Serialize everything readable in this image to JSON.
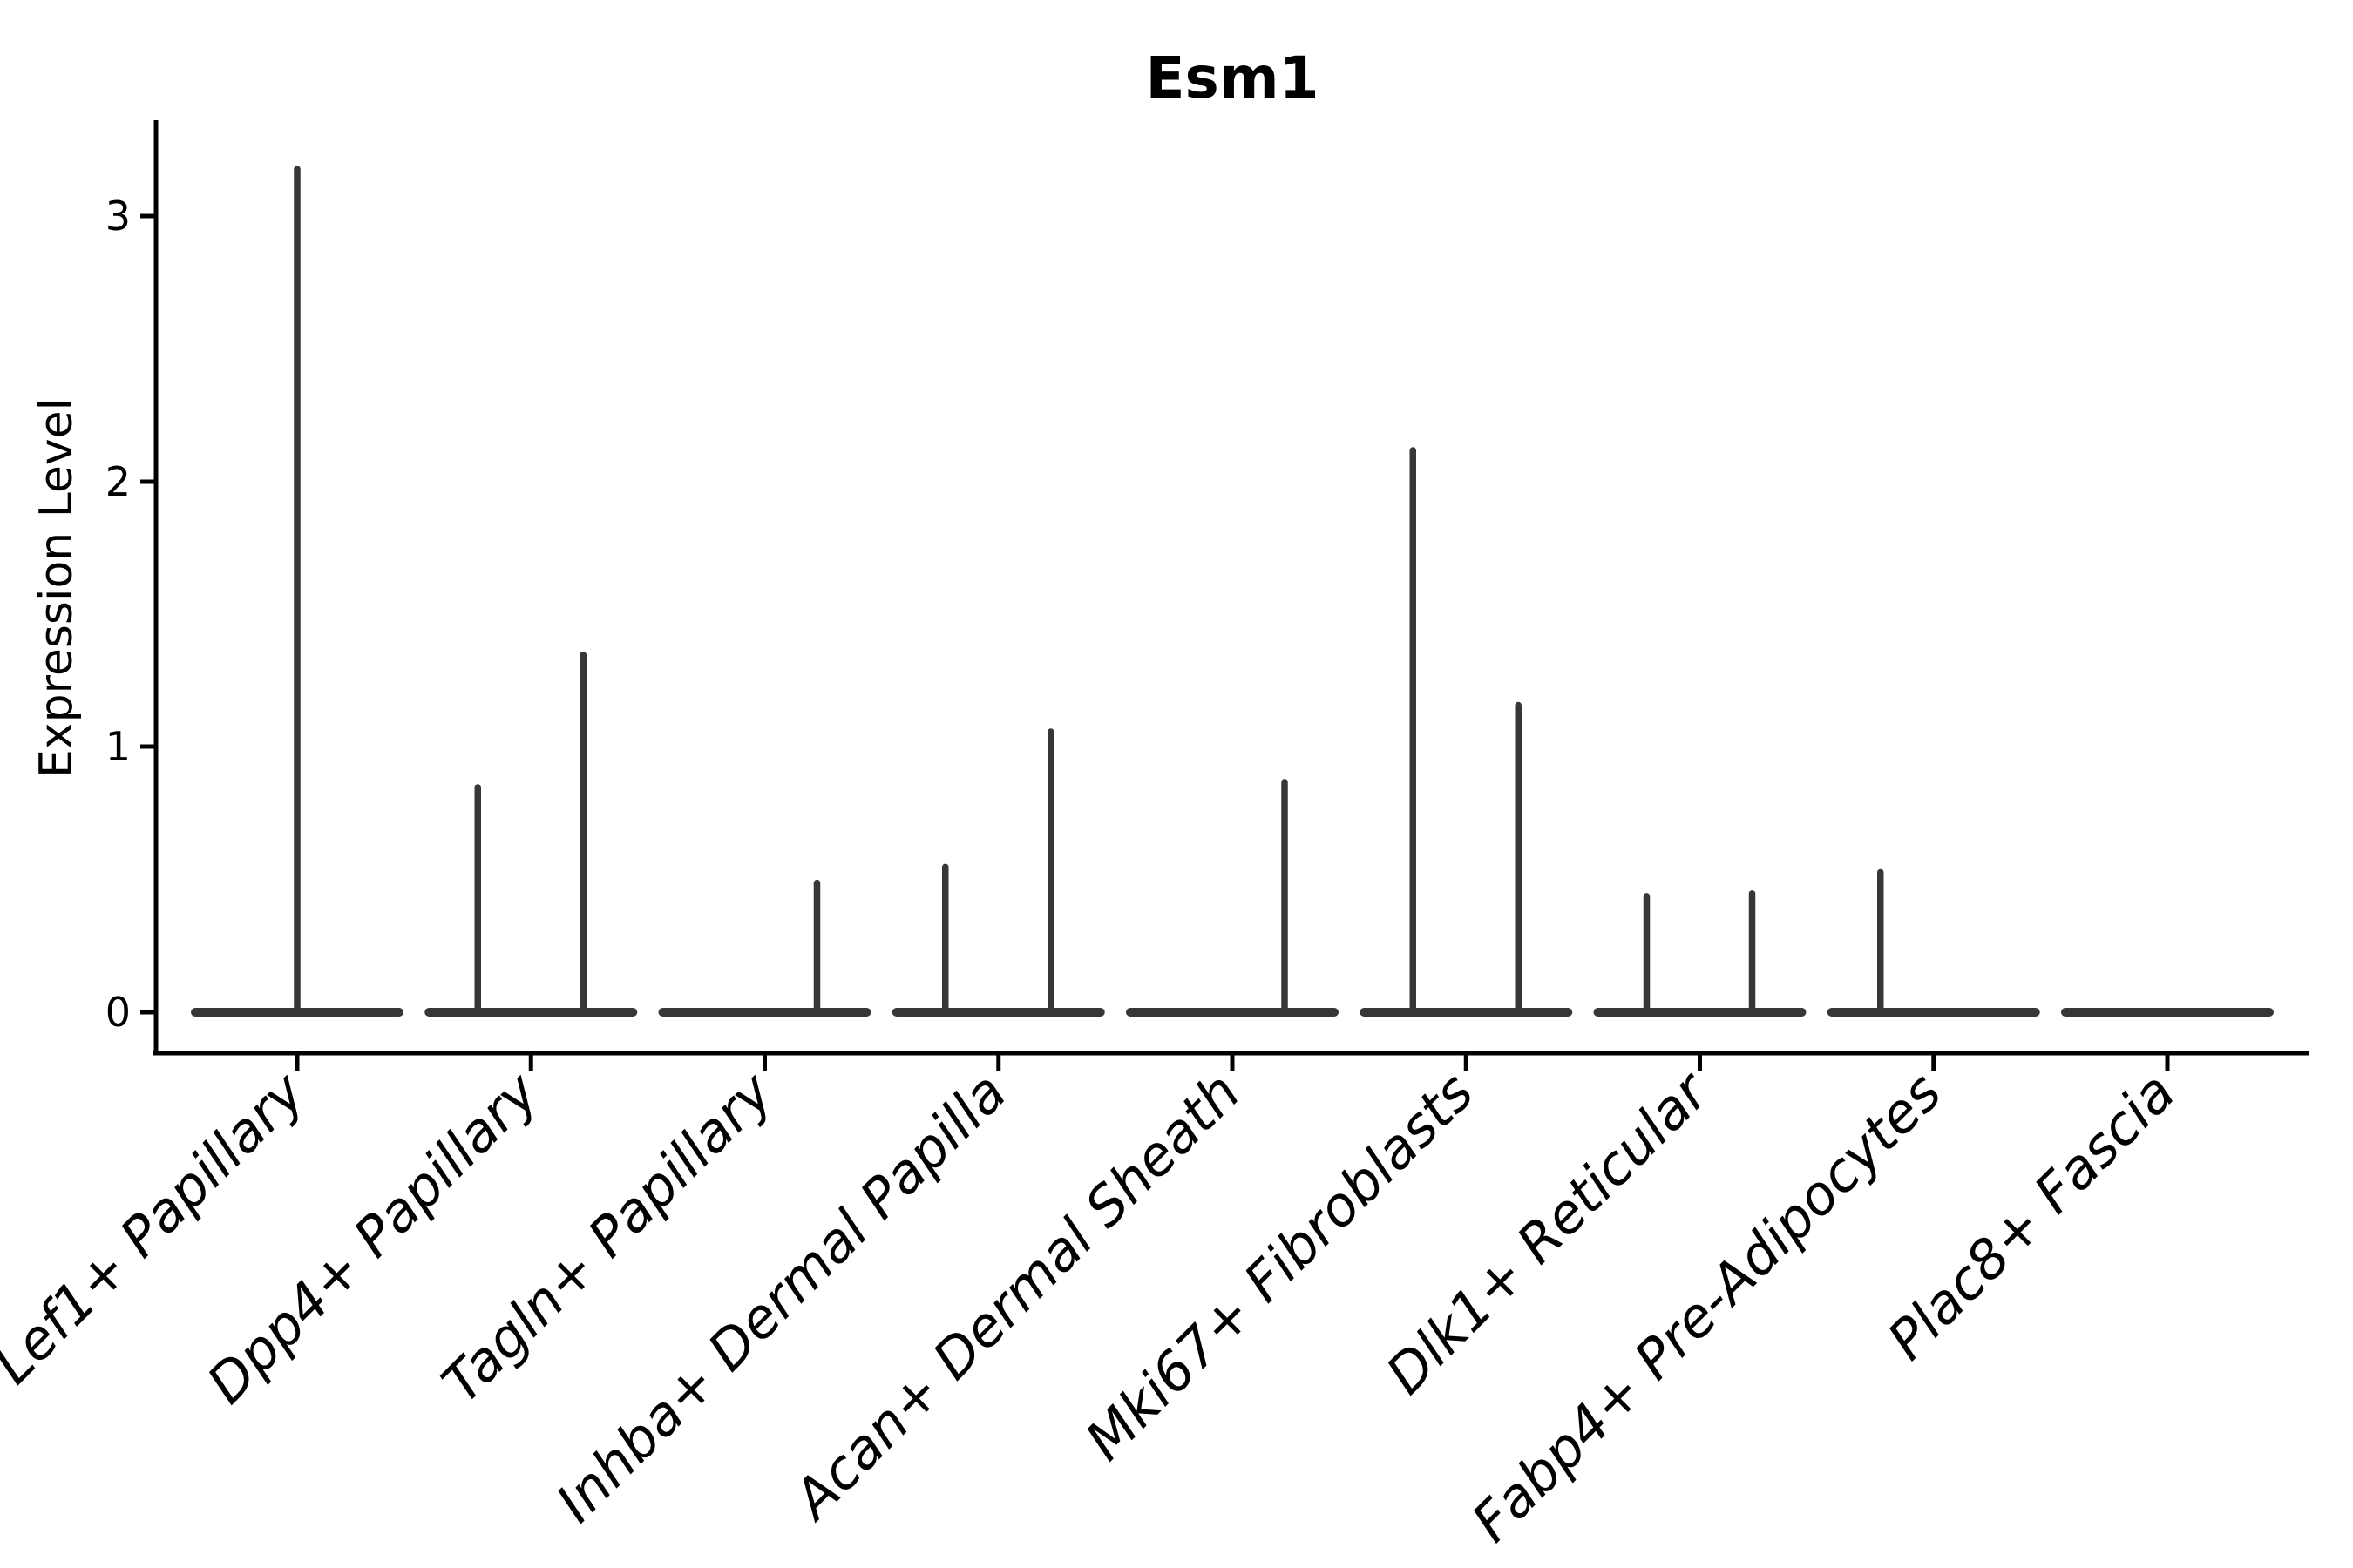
{
  "chart_data": {
    "type": "violin",
    "title": "Esm1",
    "xlabel": "",
    "ylabel": "Expression Level",
    "yticks": [
      "0",
      "1",
      "2",
      "3"
    ],
    "ylim": [
      -0.15,
      3.35
    ],
    "grid": false,
    "legend": null,
    "categories": [
      "Lef1+ Papillary",
      "Dpp4+ Papillary",
      "Tagln+ Papillary",
      "Inhba+ Dermal Papilla",
      "Acan+ Dermal Sheath",
      "Mki67+ Fibroblasts",
      "Dlk1+ Reticular",
      "Fabp4+ Pre-Adipocytes",
      "Plac8+ Fascia"
    ],
    "violins": [
      {
        "category": "Lef1+ Papillary",
        "baseline_at": 0,
        "spikes": [
          {
            "position": "center",
            "max": 3.19
          }
        ]
      },
      {
        "category": "Dpp4+ Papillary",
        "baseline_at": 0,
        "spikes": [
          {
            "position": "left",
            "max": 0.86
          },
          {
            "position": "right",
            "max": 1.36
          }
        ]
      },
      {
        "category": "Tagln+ Papillary",
        "baseline_at": 0,
        "spikes": [
          {
            "position": "right",
            "max": 0.5
          }
        ]
      },
      {
        "category": "Inhba+ Dermal Papilla",
        "baseline_at": 0,
        "spikes": [
          {
            "position": "left",
            "max": 0.56
          },
          {
            "position": "right",
            "max": 1.07
          }
        ]
      },
      {
        "category": "Acan+ Dermal Sheath",
        "baseline_at": 0,
        "spikes": [
          {
            "position": "right",
            "max": 0.88
          }
        ]
      },
      {
        "category": "Mki67+ Fibroblasts",
        "baseline_at": 0,
        "spikes": [
          {
            "position": "left",
            "max": 2.13
          },
          {
            "position": "right",
            "max": 1.17
          }
        ]
      },
      {
        "category": "Dlk1+ Reticular",
        "baseline_at": 0,
        "spikes": [
          {
            "position": "left",
            "max": 0.45
          },
          {
            "position": "right",
            "max": 0.46
          }
        ]
      },
      {
        "category": "Fabp4+ Pre-Adipocytes",
        "baseline_at": 0,
        "spikes": [
          {
            "position": "left",
            "max": 0.54
          }
        ]
      },
      {
        "category": "Plac8+ Fascia",
        "baseline_at": 0,
        "spikes": []
      }
    ],
    "colors": {
      "violin": "#373737",
      "axis": "#000000",
      "text": "#000000",
      "background": "#ffffff"
    }
  }
}
